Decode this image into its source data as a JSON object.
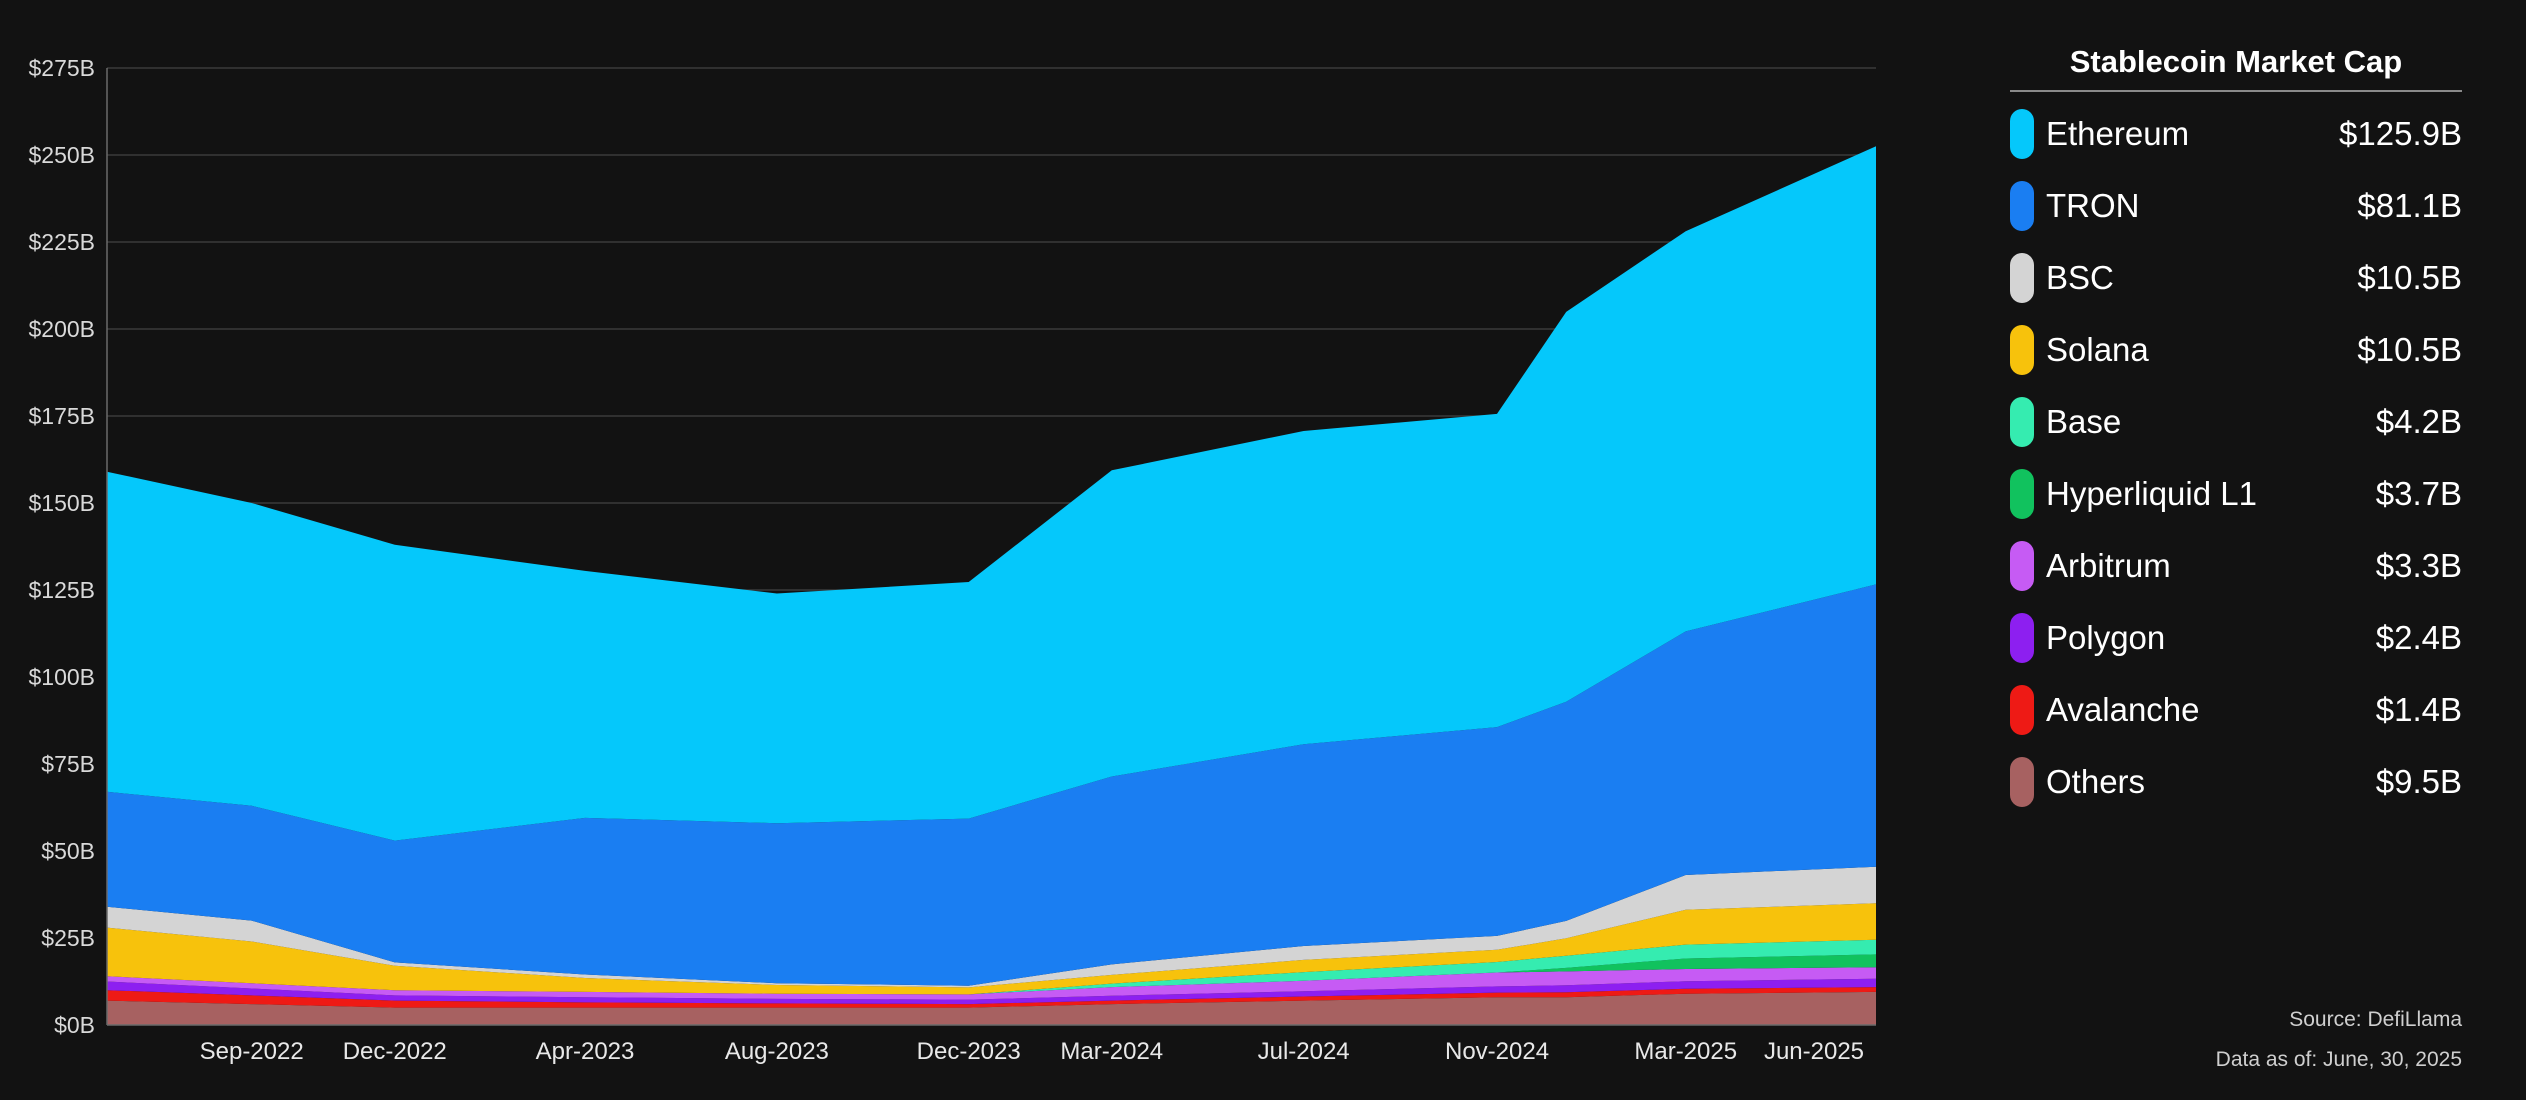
{
  "legend": {
    "title": "Stablecoin Market Cap",
    "items": [
      {
        "name": "Ethereum",
        "value": "$125.9B",
        "color": "#05c8fb"
      },
      {
        "name": "TRON",
        "value": "$81.1B",
        "color": "#1a7ef2"
      },
      {
        "name": "BSC",
        "value": "$10.5B",
        "color": "#d4d4d4"
      },
      {
        "name": "Solana",
        "value": "$10.5B",
        "color": "#f7c20c"
      },
      {
        "name": "Base",
        "value": "$4.2B",
        "color": "#35ecb0"
      },
      {
        "name": "Hyperliquid L1",
        "value": "$3.7B",
        "color": "#11c25e"
      },
      {
        "name": "Arbitrum",
        "value": "$3.3B",
        "color": "#c65bf4"
      },
      {
        "name": "Polygon",
        "value": "$2.4B",
        "color": "#8d1ff0"
      },
      {
        "name": "Avalanche",
        "value": "$1.4B",
        "color": "#ee1a15"
      },
      {
        "name": "Others",
        "value": "$9.5B",
        "color": "#a76161"
      }
    ]
  },
  "footer": {
    "source": "Source: DefiLlama",
    "as_of": "Data as of: June, 30, 2025"
  },
  "chart_data": {
    "type": "area",
    "stacked": true,
    "ylim": [
      0,
      275
    ],
    "y_unit": "$B",
    "yticks": [
      0,
      25,
      50,
      75,
      100,
      125,
      150,
      175,
      200,
      225,
      250,
      275
    ],
    "ytick_labels": [
      "$0B",
      "$25B",
      "$50B",
      "$75B",
      "$100B",
      "$125B",
      "$150B",
      "$175B",
      "$200B",
      "$225B",
      "$250B",
      "$275B"
    ],
    "xticks": [
      {
        "label": "Sep-2022",
        "date": "2022-09-01"
      },
      {
        "label": "Dec-2022",
        "date": "2022-12-01"
      },
      {
        "label": "Apr-2023",
        "date": "2023-04-01"
      },
      {
        "label": "Aug-2023",
        "date": "2023-08-01"
      },
      {
        "label": "Dec-2023",
        "date": "2023-12-01"
      },
      {
        "label": "Mar-2024",
        "date": "2024-03-01"
      },
      {
        "label": "Jul-2024",
        "date": "2024-07-01"
      },
      {
        "label": "Nov-2024",
        "date": "2024-11-01"
      },
      {
        "label": "Mar-2025",
        "date": "2025-03-01"
      },
      {
        "label": "Jun-2025",
        "date": "2025-06-01"
      }
    ],
    "x_range": [
      "2022-06-01",
      "2025-06-30"
    ],
    "grid": true,
    "legend_position": "right",
    "dates": [
      "2022-06-01",
      "2022-09-01",
      "2022-12-01",
      "2023-04-01",
      "2023-08-01",
      "2023-12-01",
      "2024-03-01",
      "2024-07-01",
      "2024-11-01",
      "2024-12-15",
      "2025-03-01",
      "2025-06-30"
    ],
    "series": [
      {
        "name": "Others",
        "values": [
          7,
          6,
          5,
          5,
          5,
          5,
          6,
          7,
          8,
          8,
          9,
          9.5
        ]
      },
      {
        "name": "Avalanche",
        "values": [
          3,
          2.5,
          2,
          1.5,
          1.2,
          1,
          1,
          1.2,
          1.3,
          1.4,
          1.4,
          1.4
        ]
      },
      {
        "name": "Polygon",
        "values": [
          2.5,
          2,
          1.5,
          1.5,
          1.3,
          1.3,
          1.4,
          1.5,
          1.8,
          2,
          2.2,
          2.4
        ]
      },
      {
        "name": "Arbitrum",
        "values": [
          1.5,
          1.5,
          1.5,
          1.5,
          1.5,
          1.5,
          2.5,
          3,
          4,
          4,
          3.5,
          3.3
        ]
      },
      {
        "name": "Hyperliquid L1",
        "values": [
          0,
          0,
          0,
          0,
          0,
          0,
          0,
          0,
          0,
          1,
          3,
          3.7
        ]
      },
      {
        "name": "Base",
        "values": [
          0,
          0,
          0,
          0,
          0,
          0,
          1,
          2.5,
          3,
          3.5,
          4,
          4.2
        ]
      },
      {
        "name": "Solana",
        "values": [
          14,
          12,
          7,
          4,
          2.5,
          2,
          2.5,
          3.5,
          3.5,
          5,
          10,
          10.5
        ]
      },
      {
        "name": "BSC",
        "values": [
          6,
          6,
          1,
          1,
          0.5,
          0.5,
          3,
          4,
          4,
          5,
          10,
          10.5
        ]
      },
      {
        "name": "TRON",
        "values": [
          33,
          33,
          35,
          45,
          46,
          48,
          54,
          58,
          60,
          63,
          70,
          81.1
        ]
      },
      {
        "name": "Ethereum",
        "values": [
          92,
          87,
          85,
          71,
          66,
          68,
          88,
          90,
          90,
          112,
          115,
          125.9
        ]
      }
    ]
  }
}
